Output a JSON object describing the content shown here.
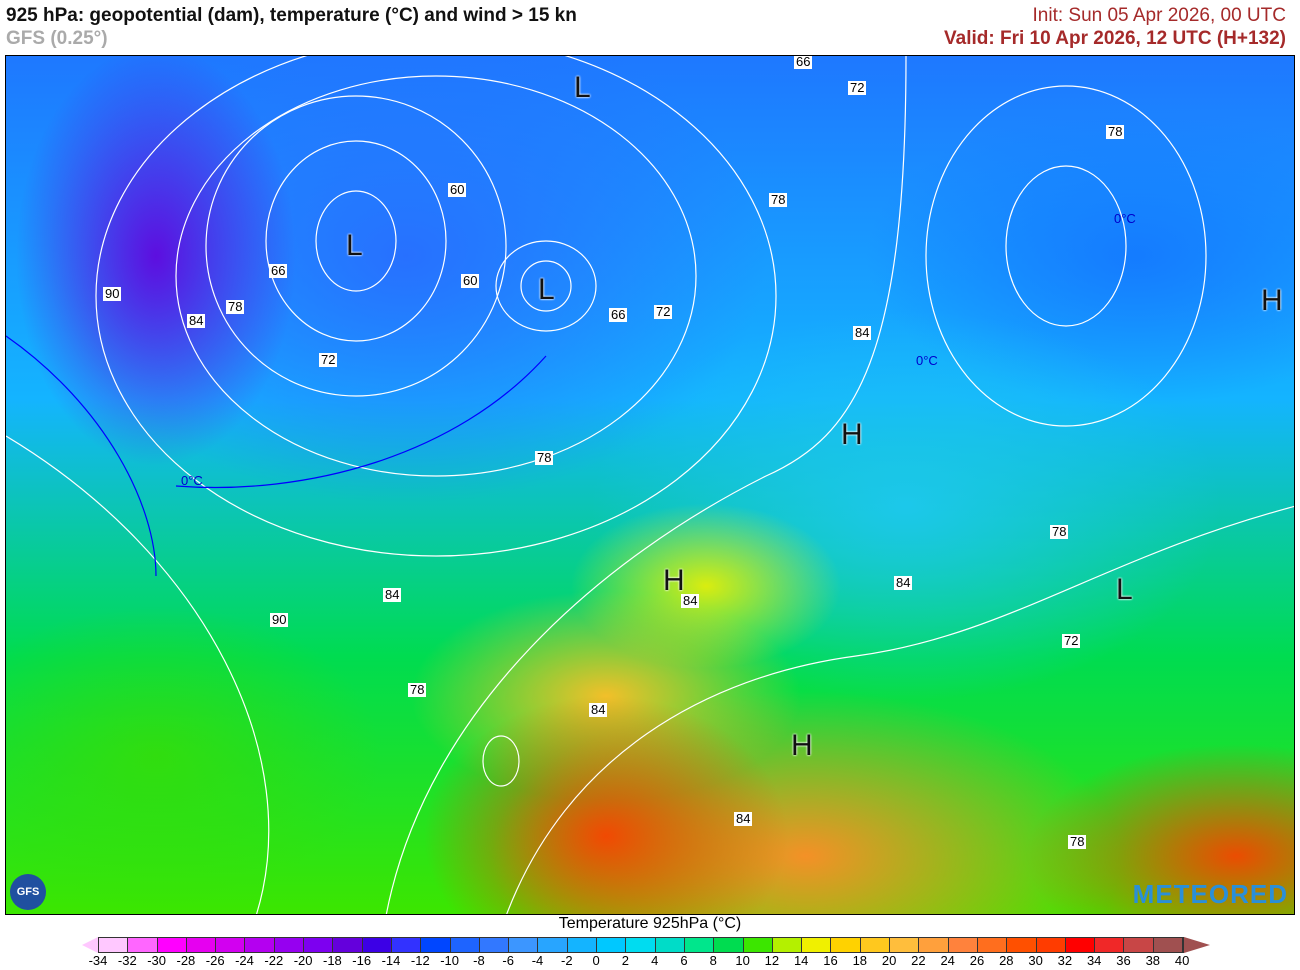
{
  "header": {
    "title": "925 hPa: geopotential (dam), temperature (°C) and wind > 15 kn",
    "model": "GFS (0.25°)",
    "init": "Init: Sun 05 Apr 2026, 00 UTC",
    "valid": "Valid: Fri 10 Apr 2026, 12 UTC (H+132)"
  },
  "map": {
    "pressure_centers": [
      "L",
      "L",
      "L",
      "H",
      "H",
      "H",
      "H",
      "L"
    ],
    "contour_labels": [
      "66",
      "72",
      "78",
      "60",
      "60",
      "66",
      "90",
      "84",
      "78",
      "72",
      "66",
      "72",
      "78",
      "84",
      "84",
      "78",
      "84",
      "90",
      "84",
      "78",
      "78",
      "84",
      "72",
      "84",
      "78"
    ],
    "isotherm_labels": [
      "0°C",
      "0°C",
      "0°C"
    ],
    "logo_text": "METEORED",
    "gfs_logo": "GFS"
  },
  "colorbar": {
    "title": "Temperature 925hPa (°C)",
    "ticks": [
      "-34",
      "-32",
      "-30",
      "-28",
      "-26",
      "-24",
      "-22",
      "-20",
      "-18",
      "-16",
      "-14",
      "-12",
      "-10",
      "-8",
      "-6",
      "-4",
      "-2",
      "0",
      "2",
      "4",
      "6",
      "8",
      "10",
      "12",
      "14",
      "16",
      "18",
      "20",
      "22",
      "24",
      "26",
      "28",
      "30",
      "32",
      "34",
      "36",
      "38",
      "40"
    ],
    "colors": [
      "#ffc8ff",
      "#ff66ff",
      "#ff00ff",
      "#e600f0",
      "#d200f0",
      "#b400f0",
      "#9600f0",
      "#7d00f0",
      "#6400dc",
      "#3c00e6",
      "#3232ff",
      "#0046ff",
      "#1e64ff",
      "#3278ff",
      "#3c96ff",
      "#28a5ff",
      "#14b4ff",
      "#00c8ff",
      "#00dcf0",
      "#00dcc8",
      "#00e68c",
      "#00dc50",
      "#3ce600",
      "#b4f000",
      "#f0f000",
      "#ffd200",
      "#ffc81e",
      "#ffbe3c",
      "#ffa03c",
      "#ff823c",
      "#ff6e1e",
      "#ff5000",
      "#ff3c00",
      "#ff0000",
      "#f02828",
      "#c84646",
      "#a05050"
    ],
    "under_color": "#ffc8ff",
    "over_color": "#a05050"
  }
}
